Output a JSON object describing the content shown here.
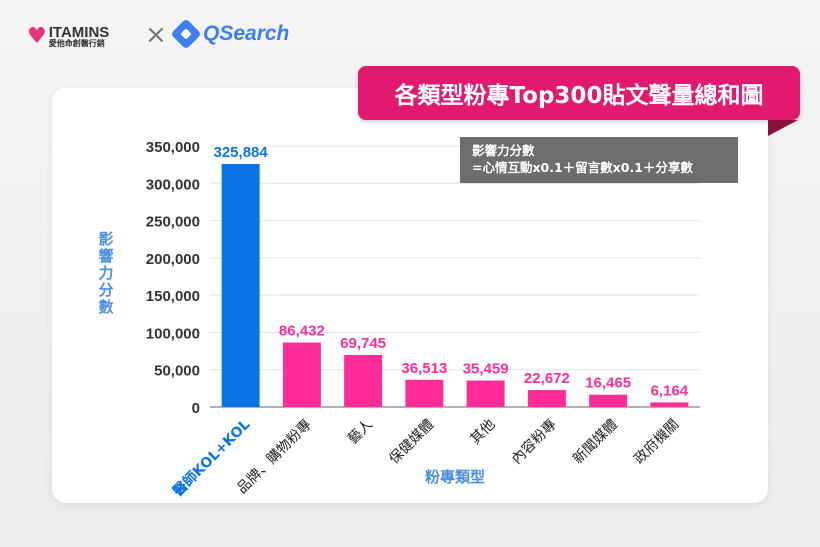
{
  "header": {
    "brand1": "ITAMINS",
    "brand1_sub": "愛他命創醫行銷",
    "separator": "×",
    "brand2": "QSearch"
  },
  "banner": {
    "title": "各類型粉專Top300貼文聲量總和圖"
  },
  "note": {
    "line1": "影響力分數",
    "line2": "=心情互動x0.1＋留言數x0.1＋分享數"
  },
  "colors": {
    "highlight": "#0a73e6",
    "bars": "#ff2d9a",
    "banner": "#e21a6f"
  },
  "chart_data": {
    "type": "bar",
    "title": "各類型粉專Top300貼文聲量總和圖",
    "xlabel": "粉專類型",
    "ylabel": "影響力分數",
    "ylim": [
      0,
      350000
    ],
    "yticks": [
      0,
      50000,
      100000,
      150000,
      200000,
      250000,
      300000,
      350000
    ],
    "ytick_labels": [
      "0",
      "50,000",
      "100,000",
      "150,000",
      "200,000",
      "250,000",
      "300,000",
      "350,000"
    ],
    "categories": [
      "醫師KOL+KOL",
      "品牌、購物粉專",
      "藝人",
      "保健媒體",
      "其他",
      "內容粉專",
      "新聞媒體",
      "政府機關"
    ],
    "values": [
      325884,
      86432,
      69745,
      36513,
      35459,
      22672,
      16465,
      6164
    ],
    "value_labels": [
      "325,884",
      "86,432",
      "69,745",
      "36,513",
      "35,459",
      "22,672",
      "16,465",
      "6,164"
    ],
    "highlight_index": 0
  }
}
